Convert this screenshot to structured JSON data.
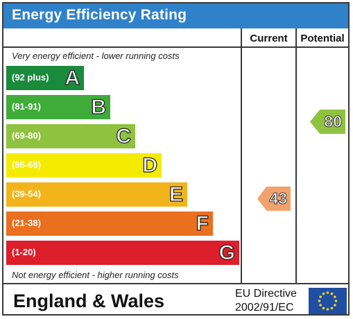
{
  "header": {
    "title": "Energy Efficiency Rating"
  },
  "columns": {
    "current": "Current",
    "potential": "Potential"
  },
  "notes": {
    "top": "Very energy efficient - lower running costs",
    "bottom": "Not energy efficient - higher running costs"
  },
  "bands": [
    {
      "range": "(92 plus)",
      "letter": "A",
      "color": "#1a8a3c"
    },
    {
      "range": "(81-91)",
      "letter": "B",
      "color": "#3fac3a"
    },
    {
      "range": "(69-80)",
      "letter": "C",
      "color": "#8fc23f"
    },
    {
      "range": "(55-68)",
      "letter": "D",
      "color": "#f5eb00"
    },
    {
      "range": "(39-54)",
      "letter": "E",
      "color": "#f3b41b"
    },
    {
      "range": "(21-38)",
      "letter": "F",
      "color": "#ea6f1e"
    },
    {
      "range": "(1-20)",
      "letter": "G",
      "color": "#dc1f2a"
    }
  ],
  "ratings": {
    "current": {
      "value": "43",
      "color": "#f1a36e"
    },
    "potential": {
      "value": "80",
      "color": "#8fc23f"
    }
  },
  "footer": {
    "region": "England & Wales",
    "directive_line1": "EU Directive",
    "directive_line2": "2002/91/EC",
    "flag_color": "#1f4ea3",
    "star_color": "#f7d417"
  }
}
